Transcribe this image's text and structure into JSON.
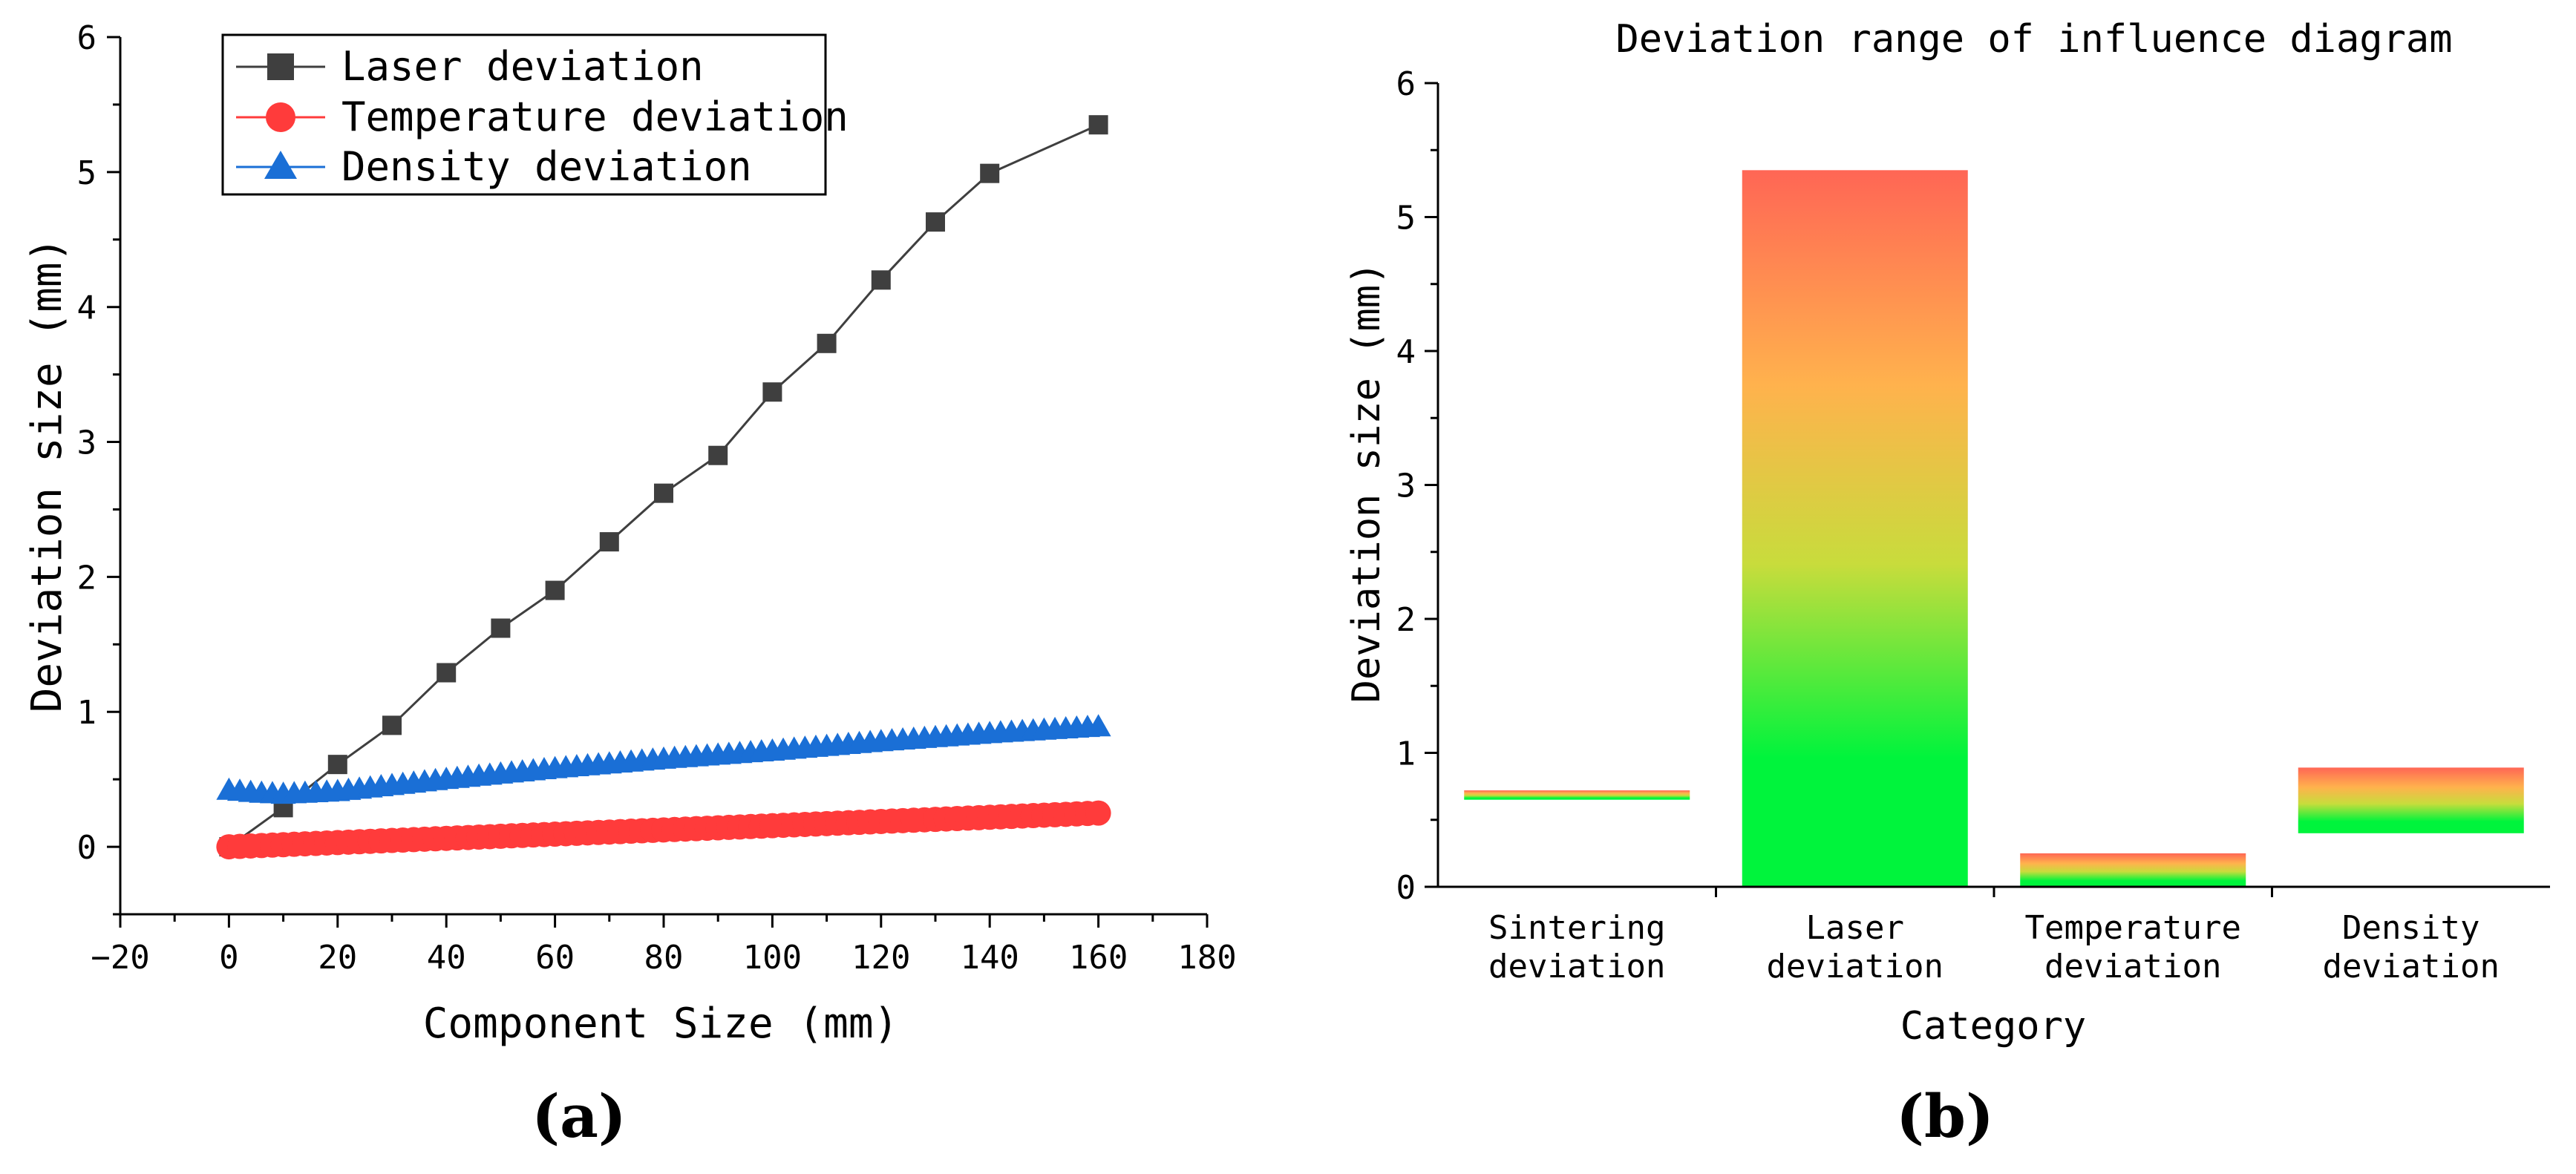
{
  "figure": {
    "panel_a_label": "(a)",
    "panel_b_label": "(b)"
  },
  "chart_data": [
    {
      "type": "line",
      "title": "",
      "xlabel": "Component Size (mm)",
      "ylabel": "Deviation size (mm)",
      "xlim": [
        -20,
        180
      ],
      "ylim": [
        -0.5,
        6
      ],
      "xticks": [
        -20,
        0,
        20,
        40,
        60,
        80,
        100,
        120,
        140,
        160,
        180
      ],
      "xtick_labels": [
        "−20",
        "0",
        "20",
        "40",
        "60",
        "80",
        "100",
        "120",
        "140",
        "160",
        "180"
      ],
      "yticks": [
        0,
        1,
        2,
        3,
        4,
        5,
        6
      ],
      "ytick_labels": [
        "0",
        "1",
        "2",
        "3",
        "4",
        "5",
        "6"
      ],
      "grid": false,
      "legend_position": "top-left",
      "series": [
        {
          "name": "Laser deviation",
          "color": "#3f3f3f",
          "marker": "square",
          "x": [
            0,
            10,
            20,
            30,
            40,
            50,
            60,
            70,
            80,
            90,
            100,
            110,
            120,
            130,
            140,
            160
          ],
          "y": [
            0.0,
            0.29,
            0.61,
            0.9,
            1.29,
            1.62,
            1.9,
            2.26,
            2.62,
            2.9,
            3.37,
            3.73,
            4.2,
            4.63,
            4.99,
            5.35
          ]
        },
        {
          "name": "Temperature deviation",
          "color": "#ff3b3b",
          "marker": "circle",
          "x_start": 0,
          "x_end": 160,
          "x_step": 2,
          "y_start": 0.0,
          "y_end": 0.25
        },
        {
          "name": "Density deviation",
          "color": "#1a6fd6",
          "marker": "triangle",
          "x_start": 0,
          "x_end": 160,
          "x_step": 2,
          "x": [
            0,
            5,
            10,
            20,
            40,
            60,
            80,
            100,
            120,
            140,
            160
          ],
          "y": [
            0.42,
            0.4,
            0.39,
            0.41,
            0.5,
            0.58,
            0.65,
            0.71,
            0.78,
            0.84,
            0.89
          ]
        }
      ]
    },
    {
      "type": "bar",
      "title": "Deviation range of influence diagram",
      "xlabel": "Category",
      "ylabel": "Deviation size (mm)",
      "ylim": [
        0,
        6
      ],
      "yticks": [
        0,
        1,
        2,
        3,
        4,
        5,
        6
      ],
      "ytick_labels": [
        "0",
        "1",
        "2",
        "3",
        "4",
        "5",
        "6"
      ],
      "grid": false,
      "categories": [
        [
          "Sintering",
          "deviation"
        ],
        [
          "Laser",
          "deviation"
        ],
        [
          "Temperature",
          "deviation"
        ],
        [
          "Density",
          "deviation"
        ]
      ],
      "ranges": [
        {
          "low": 0.65,
          "high": 0.72
        },
        {
          "low": 0.0,
          "high": 5.35
        },
        {
          "low": 0.0,
          "high": 0.25
        },
        {
          "low": 0.4,
          "high": 0.89
        }
      ],
      "gradient_colors": {
        "top": "#ff6655",
        "upper": "#ffb24d",
        "middle": "#c8dc3c",
        "bottom": "#00f43c"
      }
    }
  ]
}
